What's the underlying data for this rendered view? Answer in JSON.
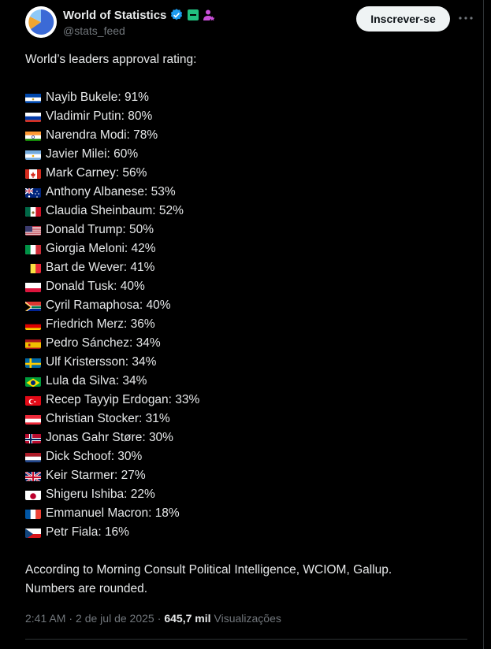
{
  "account": {
    "name": "World of Statistics",
    "handle": "@stats_feed",
    "subscribe_label": "Inscrever-se"
  },
  "post": {
    "title": "World’s leaders approval rating:",
    "leaders": [
      {
        "text": "Nayib Bukele: 91%",
        "flag": "el-salvador-flag"
      },
      {
        "text": "Vladimir Putin: 80%",
        "flag": "russia-flag"
      },
      {
        "text": "Narendra Modi: 78%",
        "flag": "india-flag"
      },
      {
        "text": "Javier Milei: 60%",
        "flag": "argentina-flag"
      },
      {
        "text": "Mark Carney: 56%",
        "flag": "canada-flag"
      },
      {
        "text": "Anthony Albanese: 53%",
        "flag": "australia-flag"
      },
      {
        "text": "Claudia Sheinbaum: 52%",
        "flag": "mexico-flag"
      },
      {
        "text": "Donald Trump: 50%",
        "flag": "usa-flag"
      },
      {
        "text": "Giorgia Meloni: 42%",
        "flag": "italy-flag"
      },
      {
        "text": "Bart de Wever: 41%",
        "flag": "belgium-flag"
      },
      {
        "text": "Donald Tusk: 40%",
        "flag": "poland-flag"
      },
      {
        "text": "Cyril Ramaphosa: 40%",
        "flag": "south-africa-flag"
      },
      {
        "text": "Friedrich Merz: 36%",
        "flag": "germany-flag"
      },
      {
        "text": "Pedro Sánchez: 34%",
        "flag": "spain-flag"
      },
      {
        "text": "Ulf Kristersson: 34%",
        "flag": "sweden-flag"
      },
      {
        "text": "Lula da Silva: 34%",
        "flag": "brazil-flag"
      },
      {
        "text": "Recep Tayyip Erdogan: 33%",
        "flag": "turkey-flag"
      },
      {
        "text": "Christian Stocker: 31%",
        "flag": "austria-flag"
      },
      {
        "text": "Jonas Gahr Støre: 30%",
        "flag": "norway-flag"
      },
      {
        "text": "Dick Schoof: 30%",
        "flag": "netherlands-flag"
      },
      {
        "text": "Keir Starmer: 27%",
        "flag": "uk-flag"
      },
      {
        "text": "Shigeru Ishiba: 22%",
        "flag": "japan-flag"
      },
      {
        "text": "Emmanuel Macron: 18%",
        "flag": "france-flag"
      },
      {
        "text": "Petr Fiala: 16%",
        "flag": "czechia-flag"
      }
    ],
    "note_line1": "According to Morning Consult Political Intelligence, WCIOM, Gallup.",
    "note_line2": "Numbers are rounded."
  },
  "meta": {
    "time": "2:41 AM",
    "separator": "·",
    "date": "2 de jul de 2025",
    "views_count": "645,7 mil",
    "views_label": "Visualizações"
  },
  "colors": {
    "background": "#000000",
    "text": "#e7e9ea",
    "muted": "#71767b",
    "verified": "#1d9bf0"
  }
}
